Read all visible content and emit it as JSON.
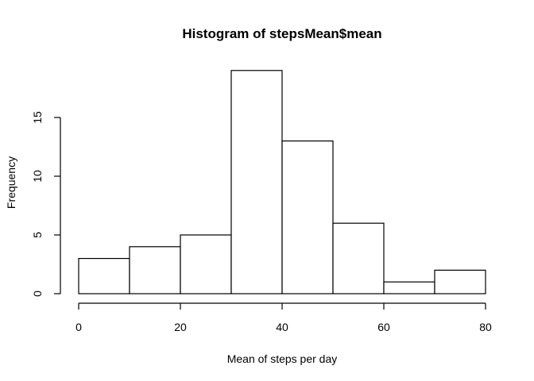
{
  "chart_data": {
    "type": "bar",
    "subtype": "histogram",
    "title": "Histogram of stepsMean$mean",
    "xlabel": "Mean of steps per day",
    "ylabel": "Frequency",
    "bins": [
      {
        "from": 0,
        "to": 10,
        "count": 3
      },
      {
        "from": 10,
        "to": 20,
        "count": 4
      },
      {
        "from": 20,
        "to": 30,
        "count": 5
      },
      {
        "from": 30,
        "to": 40,
        "count": 19
      },
      {
        "from": 40,
        "to": 50,
        "count": 13
      },
      {
        "from": 50,
        "to": 60,
        "count": 6
      },
      {
        "from": 60,
        "to": 70,
        "count": 1
      },
      {
        "from": 70,
        "to": 80,
        "count": 2
      }
    ],
    "xlim": [
      0,
      80
    ],
    "ylim": [
      0,
      19
    ],
    "x_ticks": [
      0,
      20,
      40,
      60,
      80
    ],
    "y_ticks": [
      0,
      5,
      10,
      15
    ],
    "grid": false,
    "bar_fill": "#ffffff",
    "bar_stroke": "#000000"
  }
}
